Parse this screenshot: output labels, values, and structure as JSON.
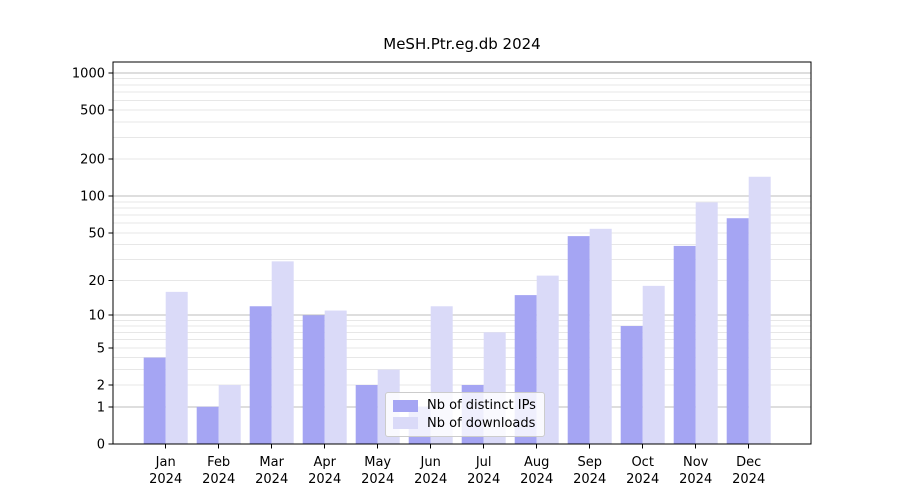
{
  "page": {
    "background": "#ffffff"
  },
  "chart_data": {
    "type": "bar",
    "title": "MeSH.Ptr.eg.db 2024",
    "year": "2024",
    "categories": [
      "Jan",
      "Feb",
      "Mar",
      "Apr",
      "May",
      "Jun",
      "Jul",
      "Aug",
      "Sep",
      "Oct",
      "Nov",
      "Dec"
    ],
    "series": [
      {
        "name": "Nb of distinct IPs",
        "color": "#a5a5f3",
        "values": [
          4,
          1,
          12,
          10,
          2,
          1,
          2,
          15,
          47,
          8,
          39,
          66
        ]
      },
      {
        "name": "Nb of downloads",
        "color": "#dadaf8",
        "values": [
          16,
          2,
          29,
          11,
          3,
          12,
          7,
          22,
          54,
          18,
          89,
          144
        ]
      }
    ],
    "yticks": [
      0,
      1,
      2,
      5,
      10,
      20,
      50,
      100,
      200,
      500,
      1000
    ],
    "ylim": [
      0,
      1000
    ],
    "scale": "log10(1+x)",
    "grid": {
      "major_color": "#bdbdbd",
      "minor_color": "#e7e7e7"
    },
    "axis_color": "#000000",
    "tick_label_color": "#000000",
    "legend_position": "lower center"
  }
}
